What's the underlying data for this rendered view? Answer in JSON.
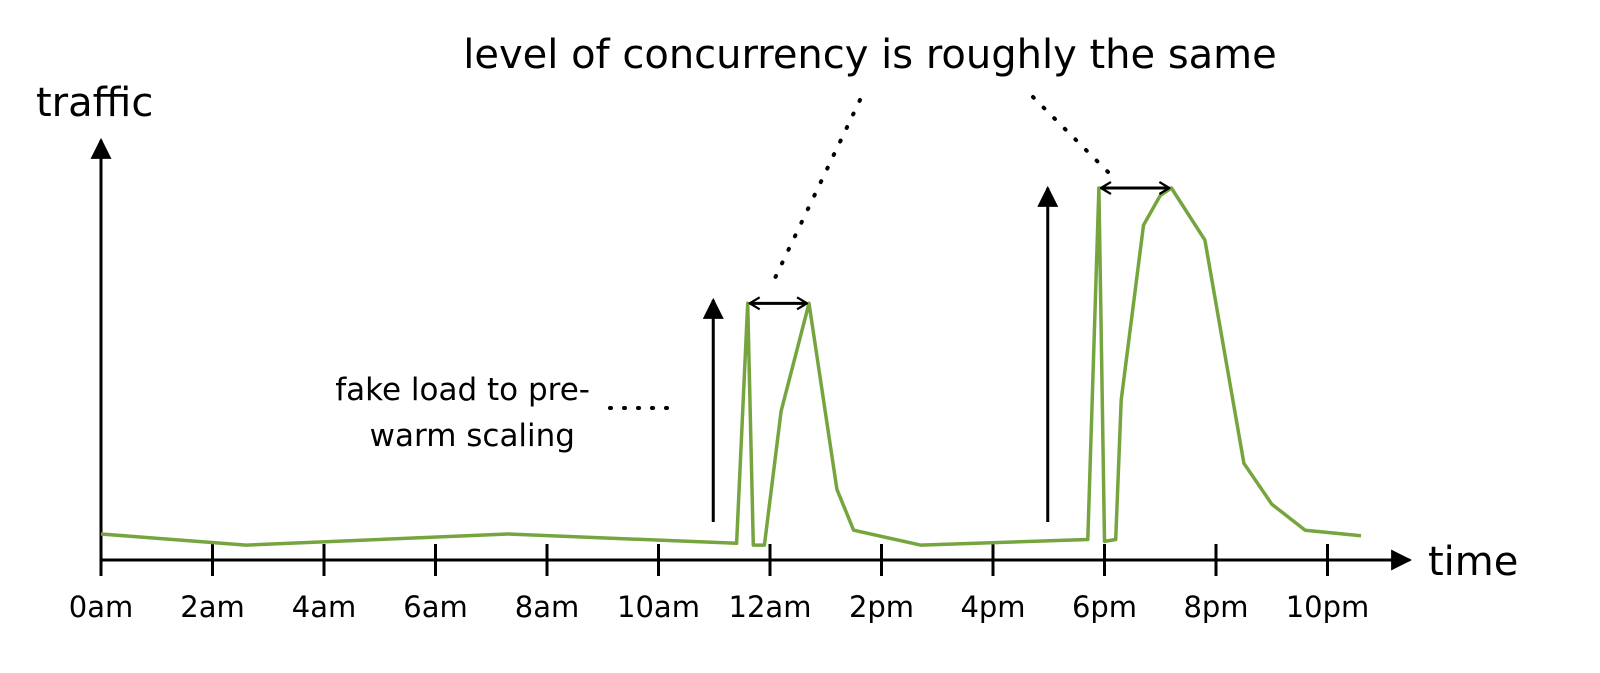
{
  "chart_data": {
    "type": "line",
    "title": "level of concurrency is roughly the same",
    "xlabel": "time",
    "ylabel": "traffic",
    "x_unit": "hour of day",
    "xlim": [
      0,
      23.5
    ],
    "ylim": [
      0,
      100
    ],
    "grid": false,
    "categories": [
      "0am",
      "2am",
      "4am",
      "6am",
      "8am",
      "10am",
      "12am",
      "2pm",
      "4pm",
      "6pm",
      "8pm",
      "10pm"
    ],
    "tick_hours": [
      0,
      2,
      4,
      6,
      8,
      10,
      12,
      14,
      16,
      18,
      20,
      22
    ],
    "series": [
      {
        "color": "#76a540",
        "points": [
          [
            0,
            7
          ],
          [
            2.6,
            4
          ],
          [
            7.3,
            7
          ],
          [
            11.4,
            4.5
          ],
          [
            11.6,
            69
          ],
          [
            11.7,
            4
          ],
          [
            11.9,
            4
          ],
          [
            12.2,
            40
          ],
          [
            12.7,
            69
          ],
          [
            13.2,
            19
          ],
          [
            13.5,
            8
          ],
          [
            14.7,
            4
          ],
          [
            17.7,
            5.5
          ],
          [
            17.9,
            100
          ],
          [
            18.0,
            5
          ],
          [
            18.2,
            5.5
          ],
          [
            18.3,
            43
          ],
          [
            18.7,
            90
          ],
          [
            19.0,
            98
          ],
          [
            19.2,
            100
          ],
          [
            19.8,
            86
          ],
          [
            20.5,
            26
          ],
          [
            21.0,
            15
          ],
          [
            21.6,
            8
          ],
          [
            22.6,
            6.5
          ]
        ]
      }
    ],
    "annotations": {
      "prewarm_note": [
        "fake load to pre-",
        "warm scaling"
      ],
      "prewarm_arrows_at_hour": [
        11.0,
        17.0
      ],
      "concurrency_spans": [
        [
          11.6,
          12.7
        ],
        [
          17.9,
          19.2
        ]
      ]
    }
  }
}
